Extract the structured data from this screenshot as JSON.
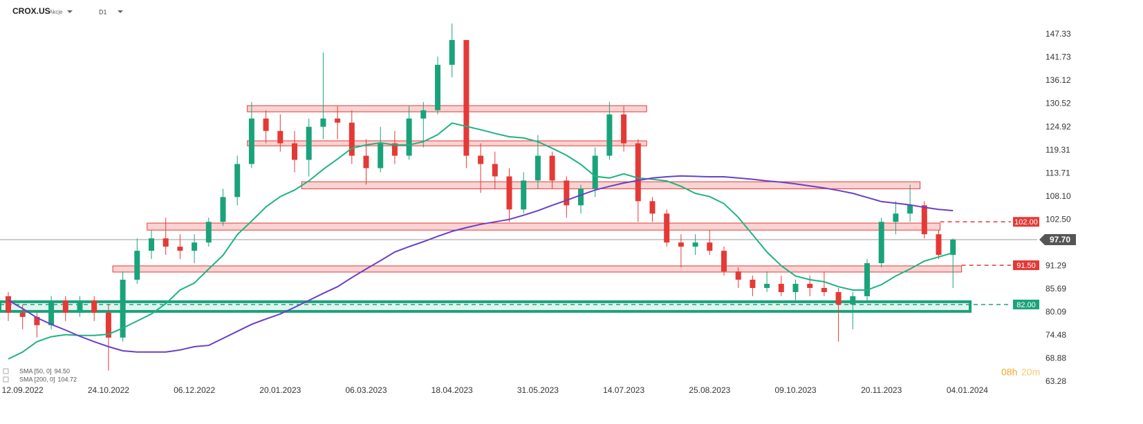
{
  "header": {
    "symbol": "CROX.US",
    "market": "Akcje",
    "interval": "D1"
  },
  "countdown": {
    "hours": "08h",
    "minutes": "20m"
  },
  "chart_data": {
    "type": "candlestick",
    "categories": [
      null,
      "12.09.2022",
      null,
      null,
      null,
      null,
      null,
      "24.10.2022",
      null,
      null,
      null,
      null,
      null,
      "06.12.2022",
      null,
      null,
      null,
      null,
      null,
      "20.01.2023",
      null,
      null,
      null,
      null,
      null,
      "06.03.2023",
      null,
      null,
      null,
      null,
      null,
      "18.04.2023",
      null,
      null,
      null,
      null,
      null,
      "31.05.2023",
      null,
      null,
      null,
      null,
      null,
      "14.07.2023",
      null,
      null,
      null,
      null,
      null,
      "25.08.2023",
      null,
      null,
      null,
      null,
      null,
      "09.10.2023",
      null,
      null,
      null,
      null,
      null,
      "20.11.2023",
      null,
      null,
      null,
      null,
      null,
      "04.01.2024"
    ],
    "open": [
      84,
      80,
      79,
      77,
      83,
      80,
      83,
      80,
      74,
      88,
      95,
      98,
      96,
      95,
      97,
      102,
      108,
      116,
      127,
      124,
      121,
      117,
      125,
      127,
      126,
      118,
      115,
      121,
      118,
      127,
      129,
      140,
      146,
      118,
      116,
      113,
      105,
      112,
      118,
      112,
      106,
      110,
      118,
      128,
      121,
      107,
      104,
      97,
      96,
      97,
      95,
      90,
      88,
      86,
      87,
      85,
      87,
      86,
      85,
      82,
      84,
      92,
      102,
      104,
      106,
      99,
      94,
      null
    ],
    "high": [
      85,
      82,
      80,
      84,
      84,
      84,
      84,
      82,
      90,
      98,
      100,
      103,
      99,
      99,
      103,
      110,
      118,
      131,
      129,
      128,
      124,
      127,
      143,
      130,
      129,
      122,
      125,
      124,
      130,
      131,
      142,
      150,
      146,
      121,
      119,
      115,
      114,
      123,
      119,
      113,
      111,
      120,
      131,
      130,
      122,
      108,
      105,
      99,
      99,
      100,
      96,
      91,
      89,
      90,
      89,
      88,
      89,
      90,
      86,
      85,
      93,
      103,
      107,
      111,
      107,
      100,
      98,
      null
    ],
    "low": [
      78,
      76,
      74,
      76,
      78,
      79,
      78,
      66,
      73,
      87,
      93,
      94,
      93,
      92,
      96,
      101,
      106,
      115,
      121,
      119,
      114,
      113,
      122,
      122,
      116,
      111,
      114,
      116,
      117,
      120,
      128,
      137,
      115,
      109,
      110,
      102,
      104,
      110,
      110,
      103,
      104,
      108,
      117,
      119,
      102,
      102,
      96,
      91,
      94,
      94,
      89,
      86,
      84,
      85,
      84,
      83,
      84,
      84,
      73,
      76,
      83,
      91,
      99,
      102,
      98,
      93,
      86,
      null
    ],
    "close": [
      80,
      79,
      77,
      83,
      80,
      83,
      80,
      74,
      88,
      95,
      98,
      96,
      95,
      97,
      102,
      108,
      116,
      127,
      124,
      121,
      117,
      125,
      127,
      126,
      118,
      115,
      121,
      118,
      127,
      129,
      140,
      146,
      118,
      116,
      113,
      105,
      112,
      118,
      112,
      106,
      110,
      118,
      128,
      121,
      107,
      104,
      97,
      96,
      97,
      95,
      90,
      88,
      86,
      87,
      85,
      87,
      86,
      85,
      82,
      84,
      92,
      102,
      104,
      106,
      99,
      94,
      97.7,
      null
    ],
    "up_color": "#1aa37a",
    "down_color": "#e53935",
    "series": [
      {
        "name": "SMA [50, 0]",
        "value_label": "94.50",
        "color": "#1db383",
        "values": [
          68.8,
          70.5,
          73,
          74.2,
          74.7,
          74.5,
          74.5,
          74.8,
          76.3,
          78,
          79.7,
          82.2,
          85.5,
          87.2,
          90.6,
          93.9,
          98.9,
          102.2,
          105.6,
          108.1,
          109.7,
          111.9,
          114.7,
          117.2,
          119.8,
          120.6,
          121.1,
          120.6,
          120.6,
          121.4,
          123.1,
          125.9,
          125.1,
          124.3,
          123.4,
          122.6,
          122.3,
          121.4,
          119.8,
          118.1,
          115.9,
          113,
          112.6,
          113.6,
          112.6,
          112.3,
          111.9,
          110.6,
          108.9,
          108.1,
          106.4,
          103.1,
          98.9,
          94.7,
          91.4,
          88.9,
          88,
          87.5,
          86.3,
          85.5,
          85.5,
          86.8,
          88.9,
          90.6,
          92.5,
          93.5,
          94.5,
          null
        ]
      },
      {
        "name": "SMA [200, 0]",
        "value_label": "104.72",
        "color": "#6a3fc9",
        "values": [
          83,
          81,
          78.8,
          77.2,
          75.8,
          74.3,
          73,
          71.8,
          70.8,
          70.5,
          70.5,
          70.5,
          71,
          71.8,
          72.1,
          73.8,
          75.5,
          77.2,
          78.5,
          79.7,
          81.3,
          83,
          84.7,
          86.3,
          88.5,
          90.6,
          92.6,
          94.7,
          96,
          97.2,
          98.5,
          99.7,
          100.6,
          101.4,
          102,
          102.6,
          103.6,
          104.7,
          106,
          107.2,
          108.5,
          109.7,
          110.6,
          111.4,
          112,
          112.6,
          112.9,
          113.1,
          113,
          112.9,
          112.9,
          112.6,
          112.3,
          111.9,
          111.6,
          111.2,
          110.7,
          110.2,
          109.6,
          108.9,
          107.9,
          106.9,
          106.5,
          106.1,
          105.5,
          105,
          104.72,
          null
        ]
      }
    ],
    "zones": [
      {
        "low": 128.62,
        "high": 130.12,
        "start": 16.7,
        "end": 44.6,
        "color": "#e53935"
      },
      {
        "low": 120.4,
        "high": 121.6,
        "start": 16.7,
        "end": 44.6,
        "color": "#e53935"
      },
      {
        "low": 110.0,
        "high": 111.7,
        "start": 20.5,
        "end": 63.7,
        "color": "#e53935"
      },
      {
        "low": 100.0,
        "high": 101.7,
        "start": 9.7,
        "end": 65.1,
        "color": "#e53935"
      },
      {
        "low": 89.85,
        "high": 91.35,
        "start": 7.3,
        "end": 66.6,
        "color": "#e53935"
      },
      {
        "low": 80.33,
        "high": 82.67,
        "start": -0.6,
        "end": 67.2,
        "color": "#1aa37a"
      }
    ],
    "levels": [
      {
        "value": 102,
        "label": "102.00",
        "color": "#e53935",
        "start": 65.1
      },
      {
        "value": 91.5,
        "label": "91.50",
        "color": "#e53935",
        "start": 66.6
      },
      {
        "value": 82,
        "label": "82.00",
        "color": "#1aa37a",
        "start": -0.6
      }
    ],
    "last_price": {
      "value": 97.7,
      "label": "97.70",
      "color": "#555555"
    },
    "ylim": [
      59.6,
      155.68
    ],
    "yticks": [
      147.33,
      141.73,
      136.12,
      130.52,
      124.92,
      119.31,
      113.71,
      {
        "value": 108.1,
        "label": "108.10"
      },
      {
        "value": 102.5,
        "label": "102.50"
      },
      91.29,
      85.69,
      80.09,
      74.48,
      68.88,
      63.28
    ]
  }
}
